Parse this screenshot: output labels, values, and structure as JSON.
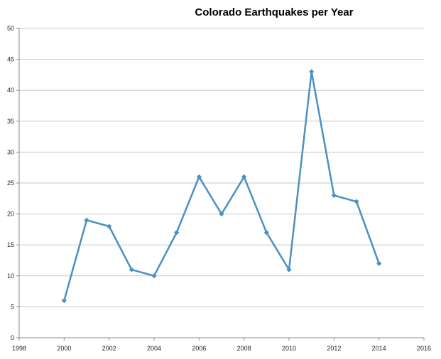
{
  "chart_data": {
    "type": "line",
    "title": "Colorado Earthquakes per Year",
    "xlabel": "",
    "ylabel": "",
    "xlim": [
      1998,
      2016
    ],
    "ylim": [
      0,
      50
    ],
    "x_ticks": [
      1998,
      2000,
      2002,
      2004,
      2006,
      2008,
      2010,
      2012,
      2014,
      2016
    ],
    "y_ticks": [
      0,
      5,
      10,
      15,
      20,
      25,
      30,
      35,
      40,
      45,
      50
    ],
    "grid": true,
    "legend": "none",
    "series": [
      {
        "color": "#4a90c2",
        "marker": "diamond",
        "x": [
          2000,
          2001,
          2002,
          2003,
          2004,
          2005,
          2006,
          2007,
          2008,
          2009,
          2010,
          2011,
          2012,
          2013,
          2014
        ],
        "y": [
          6,
          19,
          18,
          11,
          10,
          17,
          26,
          20,
          26,
          17,
          11,
          43,
          23,
          22,
          12
        ]
      }
    ]
  }
}
